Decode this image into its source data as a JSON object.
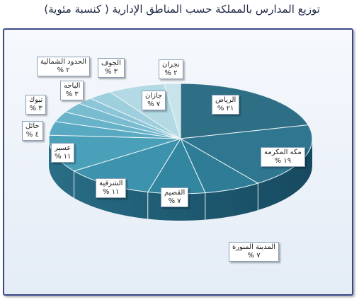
{
  "chart_data": {
    "type": "pie",
    "title": "توزيع المدارس بالمملكة حسب المناطق الإدارية ( كنسبة مئوية)",
    "slices": [
      {
        "name": "الرياض",
        "value_label": "٢١ %",
        "value": 21,
        "color": "#2f6f86"
      },
      {
        "name": "مكه المكرمه",
        "value_label": "١٩ %",
        "value": 19,
        "color": "#2f7790"
      },
      {
        "name": "المدينة المنورة",
        "value_label": "٧ %",
        "value": 7,
        "color": "#2e7c96"
      },
      {
        "name": "القصيم",
        "value_label": "٧ %",
        "value": 7,
        "color": "#3286a0"
      },
      {
        "name": "الشرقية",
        "value_label": "١١ %",
        "value": 11,
        "color": "#3d93ad"
      },
      {
        "name": "عسير",
        "value_label": "١١ %",
        "value": 11,
        "color": "#4aa0b9"
      },
      {
        "name": "حائل",
        "value_label": "٤ %",
        "value": 4,
        "color": "#58aac2"
      },
      {
        "name": "تبوك",
        "value_label": "٣ %",
        "value": 3,
        "color": "#68b3c9"
      },
      {
        "name": "الباحه",
        "value_label": "٣ %",
        "value": 3,
        "color": "#79bcd0"
      },
      {
        "name": "الحدود الشمالية",
        "value_label": "٢ %",
        "value": 2,
        "color": "#8bc5d7"
      },
      {
        "name": "الجوف",
        "value_label": "٣ %",
        "value": 3,
        "color": "#9ecfdd"
      },
      {
        "name": "جازان",
        "value_label": "٧ %",
        "value": 7,
        "color": "#b3d9e4"
      },
      {
        "name": "نجران",
        "value_label": "٢ %",
        "value": 2,
        "color": "#c9e3ea"
      }
    ],
    "legend": "none",
    "labels": "callouts"
  }
}
